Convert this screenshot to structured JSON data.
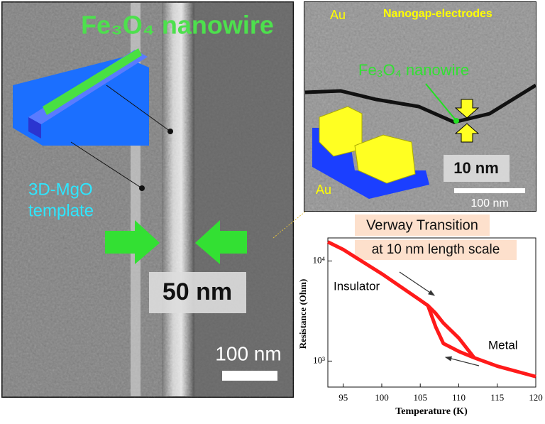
{
  "left_image": {
    "title": "Fe₃O₄ nanowire",
    "template_lines": [
      "3D-MgO",
      "template"
    ],
    "width_label": "50 nm",
    "scale_label": "100 nm"
  },
  "right_image": {
    "au_top": "Au",
    "electrodes": "Nanogap-electrodes",
    "wire_label": "Fe₃O₄ nanowire",
    "gap_label": "10 nm",
    "au_bottom": "Au",
    "scale_label": "100 nm"
  },
  "chart_data": {
    "type": "line",
    "title_lines": [
      "Verway Transition",
      "at 10 nm length scale"
    ],
    "x_label": "Temperature (K)",
    "y_label": "Resistance (Ohm)",
    "x": [
      93,
      95,
      100,
      105,
      106,
      107,
      108,
      110,
      112,
      115,
      120
    ],
    "series": [
      {
        "color": "#ff1a1a",
        "values": [
          15500,
          13000,
          7450,
          4060,
          3580,
          2200,
          1500,
          1250,
          1080,
          890,
          700
        ]
      },
      {
        "color": "#ff1a1a",
        "values": [
          null,
          null,
          null,
          null,
          3580,
          3000,
          2400,
          1700,
          1080,
          null,
          null
        ]
      }
    ],
    "annotations": [
      "Insulator",
      "Metal"
    ],
    "xlim": [
      93,
      120
    ],
    "xticks": [
      95,
      100,
      105,
      110,
      115,
      120
    ],
    "ylim": [
      550,
      17000
    ],
    "log_y": true,
    "yticks": [
      {
        "value": 1000,
        "label": "10³"
      },
      {
        "value": 10000,
        "label": "10⁴"
      }
    ]
  }
}
